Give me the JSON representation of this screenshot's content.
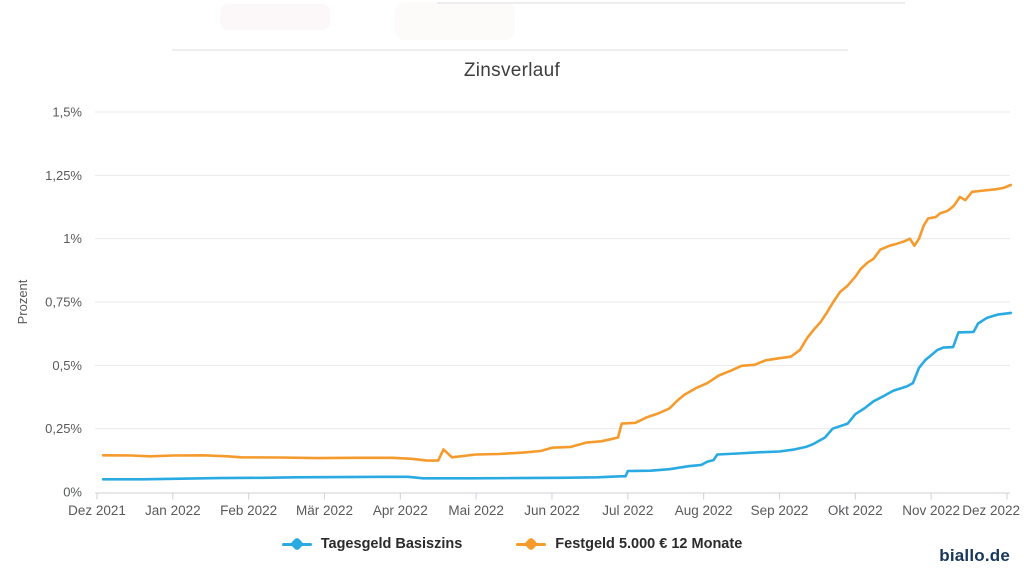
{
  "page": {
    "brand": "biallo.de"
  },
  "colors": {
    "accent_blue": "#29abe2",
    "accent_orange": "#f59b2e",
    "brand_navy": "#16365c"
  },
  "chart_data": {
    "type": "line",
    "title": "Zinsverlauf",
    "xlabel": "",
    "ylabel": "Prozent",
    "ylim": [
      0,
      1.5
    ],
    "grid": "horizontal-only",
    "legend_position": "bottom",
    "x_categories": [
      "Dez 2021",
      "Jan 2022",
      "Feb 2022",
      "Mär 2022",
      "Apr 2022",
      "Mai 2022",
      "Jun 2022",
      "Jul 2022",
      "Aug 2022",
      "Sep 2022",
      "Okt 2022",
      "Nov 2022",
      "Dez 2022"
    ],
    "y_ticks": [
      {
        "label": "0%",
        "value": 0
      },
      {
        "label": "0,25%",
        "value": 0.25
      },
      {
        "label": "0,5%",
        "value": 0.5
      },
      {
        "label": "0,75%",
        "value": 0.75
      },
      {
        "label": "1%",
        "value": 1
      },
      {
        "label": "1,25%",
        "value": 1.25
      },
      {
        "label": "1,5%",
        "value": 1.5
      }
    ],
    "series": [
      {
        "name": "Tagesgeld Basiszins",
        "color": "#29abe2",
        "points": [
          [
            0.08,
            0.05
          ],
          [
            0.6,
            0.05
          ],
          [
            1.0,
            0.052
          ],
          [
            1.6,
            0.055
          ],
          [
            2.2,
            0.056
          ],
          [
            2.6,
            0.058
          ],
          [
            3.2,
            0.059
          ],
          [
            3.8,
            0.06
          ],
          [
            4.1,
            0.06
          ],
          [
            4.3,
            0.054
          ],
          [
            4.9,
            0.054
          ],
          [
            5.5,
            0.055
          ],
          [
            6.1,
            0.056
          ],
          [
            6.6,
            0.058
          ],
          [
            6.9,
            0.062
          ],
          [
            6.97,
            0.062
          ],
          [
            7.0,
            0.083
          ],
          [
            7.3,
            0.084
          ],
          [
            7.55,
            0.09
          ],
          [
            7.8,
            0.102
          ],
          [
            7.97,
            0.107
          ],
          [
            8.05,
            0.12
          ],
          [
            8.13,
            0.126
          ],
          [
            8.18,
            0.148
          ],
          [
            8.45,
            0.152
          ],
          [
            8.75,
            0.157
          ],
          [
            9.0,
            0.16
          ],
          [
            9.2,
            0.168
          ],
          [
            9.35,
            0.178
          ],
          [
            9.45,
            0.19
          ],
          [
            9.6,
            0.215
          ],
          [
            9.7,
            0.25
          ],
          [
            9.9,
            0.27
          ],
          [
            10.0,
            0.307
          ],
          [
            10.12,
            0.33
          ],
          [
            10.24,
            0.358
          ],
          [
            10.37,
            0.378
          ],
          [
            10.5,
            0.4
          ],
          [
            10.68,
            0.417
          ],
          [
            10.76,
            0.43
          ],
          [
            10.84,
            0.49
          ],
          [
            10.92,
            0.52
          ],
          [
            11.0,
            0.54
          ],
          [
            11.08,
            0.56
          ],
          [
            11.16,
            0.57
          ],
          [
            11.29,
            0.572
          ],
          [
            11.36,
            0.63
          ],
          [
            11.56,
            0.632
          ],
          [
            11.62,
            0.665
          ],
          [
            11.74,
            0.688
          ],
          [
            11.87,
            0.7
          ],
          [
            12.05,
            0.707
          ]
        ]
      },
      {
        "name": "Festgeld 5.000 € 12 Monate",
        "color": "#f59b2e",
        "points": [
          [
            0.08,
            0.145
          ],
          [
            0.45,
            0.144
          ],
          [
            0.7,
            0.141
          ],
          [
            1.0,
            0.144
          ],
          [
            1.4,
            0.145
          ],
          [
            1.72,
            0.141
          ],
          [
            1.9,
            0.137
          ],
          [
            2.4,
            0.136
          ],
          [
            2.9,
            0.134
          ],
          [
            3.4,
            0.135
          ],
          [
            3.9,
            0.135
          ],
          [
            4.15,
            0.131
          ],
          [
            4.35,
            0.124
          ],
          [
            4.5,
            0.124
          ],
          [
            4.57,
            0.168
          ],
          [
            4.68,
            0.137
          ],
          [
            5.0,
            0.148
          ],
          [
            5.3,
            0.15
          ],
          [
            5.6,
            0.155
          ],
          [
            5.85,
            0.162
          ],
          [
            6.0,
            0.175
          ],
          [
            6.25,
            0.178
          ],
          [
            6.45,
            0.195
          ],
          [
            6.65,
            0.2
          ],
          [
            6.8,
            0.21
          ],
          [
            6.87,
            0.215
          ],
          [
            6.92,
            0.27
          ],
          [
            7.1,
            0.273
          ],
          [
            7.25,
            0.295
          ],
          [
            7.4,
            0.31
          ],
          [
            7.55,
            0.33
          ],
          [
            7.65,
            0.36
          ],
          [
            7.75,
            0.385
          ],
          [
            7.9,
            0.41
          ],
          [
            8.05,
            0.43
          ],
          [
            8.2,
            0.46
          ],
          [
            8.35,
            0.478
          ],
          [
            8.5,
            0.498
          ],
          [
            8.67,
            0.502
          ],
          [
            8.82,
            0.52
          ],
          [
            9.0,
            0.528
          ],
          [
            9.15,
            0.534
          ],
          [
            9.27,
            0.56
          ],
          [
            9.37,
            0.61
          ],
          [
            9.45,
            0.64
          ],
          [
            9.54,
            0.67
          ],
          [
            9.63,
            0.71
          ],
          [
            9.71,
            0.75
          ],
          [
            9.8,
            0.79
          ],
          [
            9.89,
            0.812
          ],
          [
            10.0,
            0.85
          ],
          [
            10.07,
            0.88
          ],
          [
            10.16,
            0.905
          ],
          [
            10.24,
            0.92
          ],
          [
            10.33,
            0.957
          ],
          [
            10.45,
            0.972
          ],
          [
            10.55,
            0.98
          ],
          [
            10.65,
            0.99
          ],
          [
            10.72,
            1.0
          ],
          [
            10.78,
            0.972
          ],
          [
            10.84,
            1.0
          ],
          [
            10.9,
            1.05
          ],
          [
            10.96,
            1.08
          ],
          [
            11.06,
            1.085
          ],
          [
            11.12,
            1.1
          ],
          [
            11.22,
            1.11
          ],
          [
            11.3,
            1.13
          ],
          [
            11.38,
            1.165
          ],
          [
            11.45,
            1.152
          ],
          [
            11.54,
            1.185
          ],
          [
            11.7,
            1.19
          ],
          [
            11.85,
            1.195
          ],
          [
            11.95,
            1.2
          ],
          [
            12.05,
            1.212
          ]
        ]
      }
    ]
  }
}
